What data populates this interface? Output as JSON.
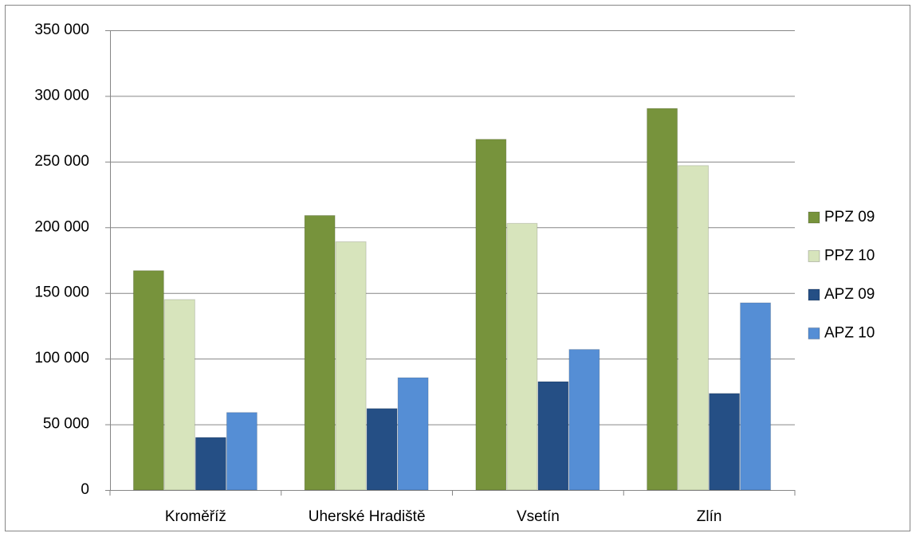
{
  "chart_data": {
    "type": "bar",
    "categories": [
      "Kroměříž",
      "Uherské Hradiště",
      "Vsetín",
      "Zlín"
    ],
    "series": [
      {
        "name": "PPZ 09",
        "color": "#77933c",
        "values": [
          167000,
          209000,
          267000,
          290500
        ]
      },
      {
        "name": "PPZ 10",
        "color": "#d7e4bc",
        "values": [
          145000,
          189000,
          203000,
          247000
        ]
      },
      {
        "name": "APZ 09",
        "color": "#254f85",
        "values": [
          40000,
          62000,
          82500,
          73500
        ]
      },
      {
        "name": "APZ 10",
        "color": "#558ed5",
        "values": [
          59000,
          85500,
          107000,
          142500
        ]
      }
    ],
    "ylim": [
      0,
      350000
    ],
    "yticks": [
      0,
      {
        "value": 50000,
        "label": "50 000"
      },
      {
        "value": 100000,
        "label": "100 000"
      },
      {
        "value": 150000,
        "label": "150 000"
      },
      {
        "value": 200000,
        "label": "200 000"
      },
      {
        "value": 250000,
        "label": "250 000"
      },
      {
        "value": 300000,
        "label": "300 000"
      },
      {
        "value": 350000,
        "label": "350 000"
      }
    ],
    "grid": true,
    "legend": "right"
  }
}
